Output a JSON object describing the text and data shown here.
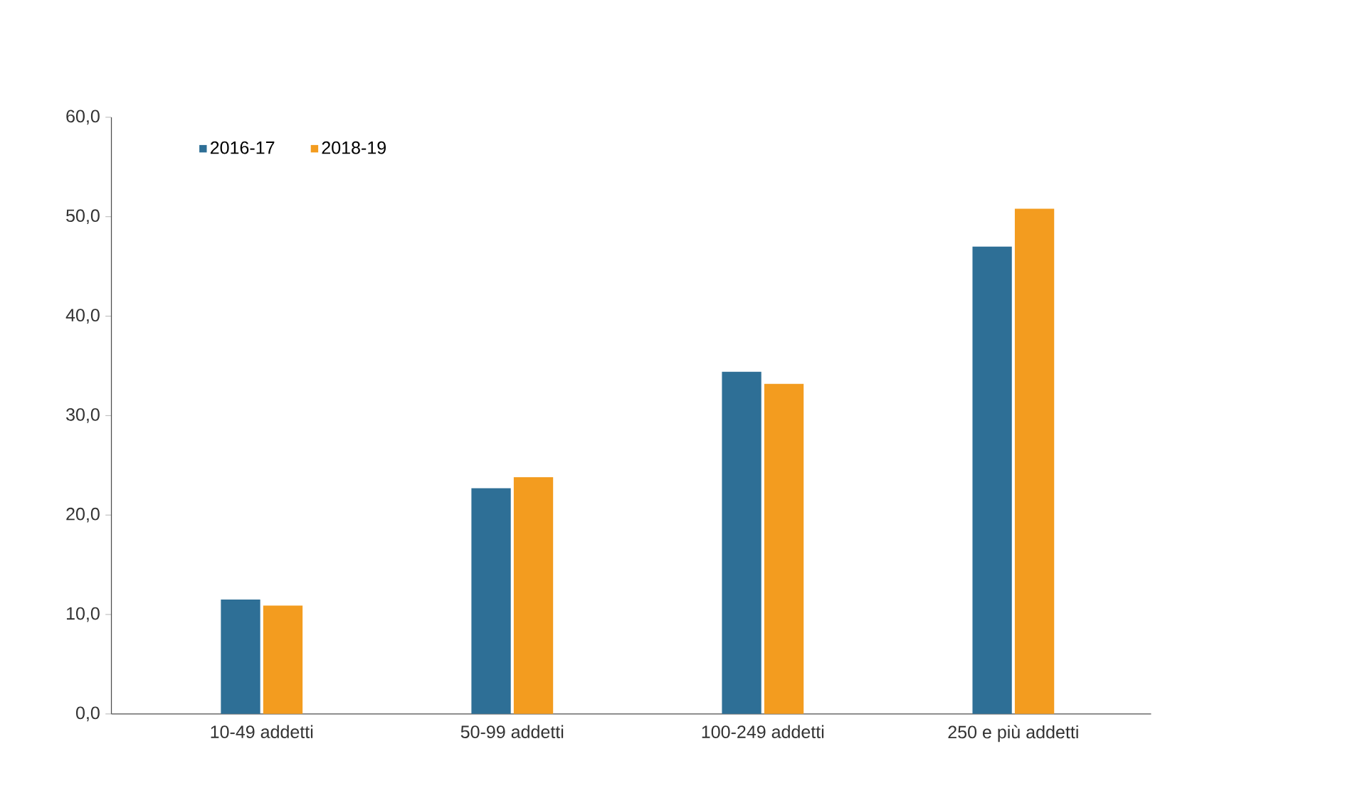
{
  "chart_data": {
    "type": "bar",
    "categories": [
      "10-49 addetti",
      "50-99 addetti",
      "100-249 addetti",
      "250 e più addetti"
    ],
    "series": [
      {
        "name": "2016-17",
        "color": "#2e6f96",
        "values": [
          11.5,
          22.7,
          34.4,
          47.0
        ]
      },
      {
        "name": "2018-19",
        "color": "#f39c1f",
        "values": [
          10.9,
          23.8,
          33.2,
          50.8
        ]
      }
    ],
    "ylim": [
      0,
      60
    ],
    "yticks": [
      {
        "value": 0,
        "label": "0,0"
      },
      {
        "value": 10,
        "label": "10,0"
      },
      {
        "value": 20,
        "label": "20,0"
      },
      {
        "value": 30,
        "label": "30,0"
      },
      {
        "value": 40,
        "label": "40,0"
      },
      {
        "value": 50,
        "label": "50,0"
      },
      {
        "value": 60,
        "label": "60,0"
      }
    ],
    "grid": false,
    "legend": "top left"
  }
}
